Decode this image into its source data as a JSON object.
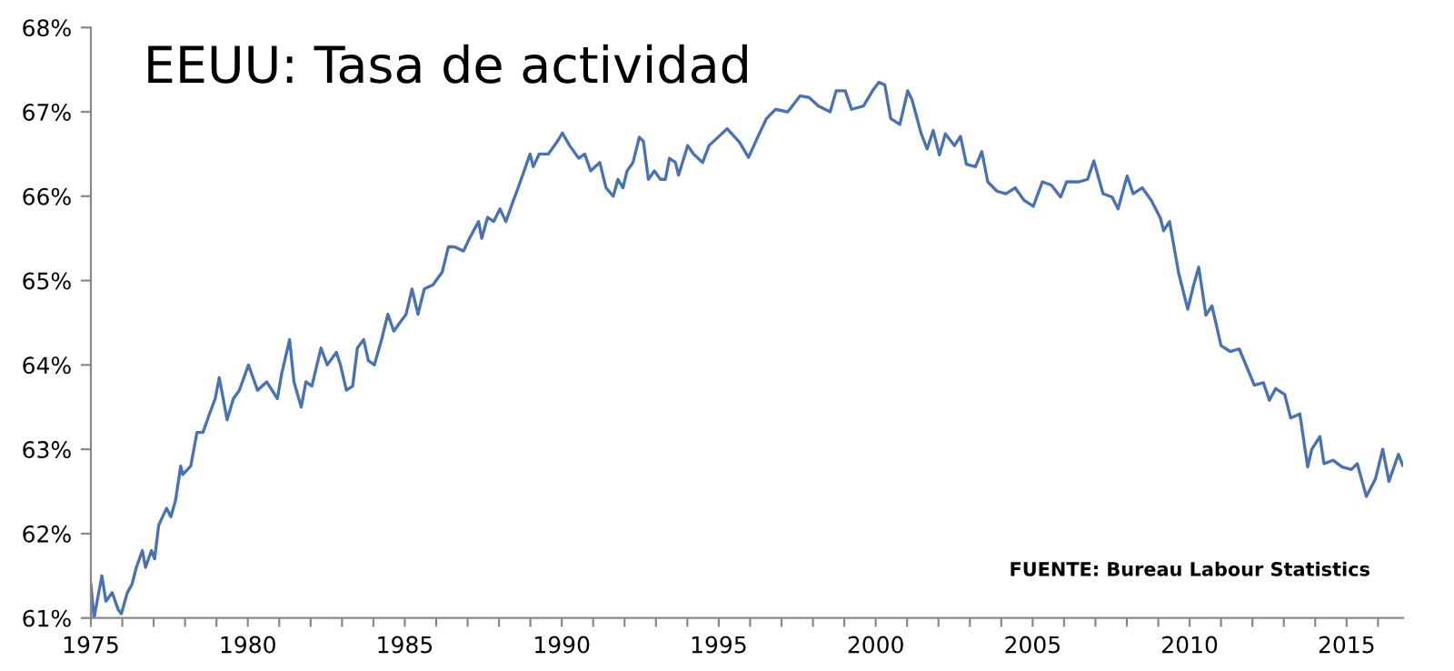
{
  "chart_data": {
    "type": "line",
    "title": "EEUU: Tasa de actividad",
    "annotations": [
      "FUENTE: Bureau Labour Statistics"
    ],
    "xlim": [
      1975,
      2016.8
    ],
    "ylim": [
      61,
      68
    ],
    "xticks": [
      1975,
      {
        "value": 1976,
        "label": null
      },
      {
        "value": 1977,
        "label": null
      },
      {
        "value": 1978,
        "label": null
      },
      {
        "value": 1979,
        "label": null
      },
      1980,
      {
        "value": 1981,
        "label": null
      },
      {
        "value": 1982,
        "label": null
      },
      {
        "value": 1983,
        "label": null
      },
      {
        "value": 1984,
        "label": null
      },
      1985,
      {
        "value": 1986,
        "label": null
      },
      {
        "value": 1987,
        "label": null
      },
      {
        "value": 1988,
        "label": null
      },
      {
        "value": 1989,
        "label": null
      },
      1990,
      {
        "value": 1991,
        "label": null
      },
      {
        "value": 1992,
        "label": null
      },
      {
        "value": 1993,
        "label": null
      },
      {
        "value": 1994,
        "label": null
      },
      1995,
      {
        "value": 1996,
        "label": null
      },
      {
        "value": 1997,
        "label": null
      },
      {
        "value": 1998,
        "label": null
      },
      {
        "value": 1999,
        "label": null
      },
      2000,
      {
        "value": 2001,
        "label": null
      },
      {
        "value": 2002,
        "label": null
      },
      {
        "value": 2003,
        "label": null
      },
      {
        "value": 2004,
        "label": null
      },
      2005,
      {
        "value": 2006,
        "label": null
      },
      {
        "value": 2007,
        "label": null
      },
      {
        "value": 2008,
        "label": null
      },
      {
        "value": 2009,
        "label": null
      },
      2010,
      {
        "value": 2011,
        "label": null
      },
      {
        "value": 2012,
        "label": null
      },
      {
        "value": 2013,
        "label": null
      },
      {
        "value": 2014,
        "label": null
      },
      2015,
      {
        "value": 2016,
        "label": null
      }
    ],
    "yticks": [
      {
        "value": 61,
        "label": "61%"
      },
      {
        "value": 62,
        "label": "62%"
      },
      {
        "value": 63,
        "label": "63%"
      },
      {
        "value": 64,
        "label": "64%"
      },
      {
        "value": 65,
        "label": "65%"
      },
      {
        "value": 66,
        "label": "66%"
      },
      {
        "value": 67,
        "label": "67%"
      },
      {
        "value": 68,
        "label": "68%"
      }
    ],
    "grid": false,
    "marker": "none",
    "line_style": "solid",
    "series": [
      {
        "color": "#4a72b0",
        "x": [
          1975.0,
          1975.1,
          1975.35,
          1975.48,
          1975.68,
          1975.87,
          1975.97,
          1976.16,
          1976.31,
          1976.45,
          1976.64,
          1976.74,
          1976.93,
          1977.03,
          1977.16,
          1977.41,
          1977.55,
          1977.7,
          1977.86,
          1977.93,
          1978.18,
          1978.38,
          1978.57,
          1978.76,
          1978.96,
          1979.09,
          1979.34,
          1979.54,
          1979.73,
          1980.02,
          1980.31,
          1980.6,
          1980.94,
          1981.08,
          1981.33,
          1981.47,
          1981.7,
          1981.85,
          1982.04,
          1982.33,
          1982.53,
          1982.82,
          1982.95,
          1983.14,
          1983.34,
          1983.49,
          1983.69,
          1983.84,
          1984.03,
          1984.26,
          1984.46,
          1984.65,
          1984.84,
          1985.04,
          1985.23,
          1985.42,
          1985.62,
          1985.9,
          1986.19,
          1986.39,
          1986.58,
          1986.87,
          1987.06,
          1987.35,
          1987.45,
          1987.64,
          1987.83,
          1988.03,
          1988.22,
          1988.41,
          1988.61,
          1988.8,
          1988.99,
          1989.09,
          1989.28,
          1989.57,
          1989.86,
          1990.02,
          1990.25,
          1990.54,
          1990.73,
          1990.92,
          1991.21,
          1991.41,
          1991.64,
          1991.79,
          1991.95,
          1992.08,
          1992.27,
          1992.47,
          1992.6,
          1992.76,
          1992.95,
          1993.14,
          1993.3,
          1993.43,
          1993.62,
          1993.72,
          1994.01,
          1994.2,
          1994.49,
          1994.69,
          1994.98,
          1995.27,
          1995.66,
          1995.95,
          1996.24,
          1996.52,
          1996.81,
          1997.2,
          1997.59,
          1997.88,
          1998.17,
          1998.55,
          1998.74,
          1999.03,
          1999.23,
          1999.61,
          1999.9,
          2000.1,
          2000.29,
          2000.48,
          2000.77,
          2001.02,
          2001.16,
          2001.45,
          2001.64,
          2001.83,
          2002.03,
          2002.22,
          2002.51,
          2002.7,
          2002.89,
          2003.18,
          2003.38,
          2003.57,
          2003.86,
          2004.15,
          2004.44,
          2004.73,
          2005.02,
          2005.31,
          2005.6,
          2005.89,
          2006.08,
          2006.46,
          2006.75,
          2006.95,
          2007.24,
          2007.53,
          2007.72,
          2008.01,
          2008.2,
          2008.49,
          2008.78,
          2009.07,
          2009.17,
          2009.36,
          2009.65,
          2009.94,
          2010.13,
          2010.29,
          2010.52,
          2010.71,
          2011.0,
          2011.29,
          2011.58,
          2011.77,
          2012.06,
          2012.35,
          2012.54,
          2012.74,
          2013.03,
          2013.22,
          2013.51,
          2013.76,
          2013.89,
          2014.15,
          2014.28,
          2014.57,
          2014.86,
          2015.15,
          2015.34,
          2015.63,
          2015.92,
          2016.15,
          2016.35,
          2016.65,
          2016.79
        ],
        "values": [
          61.4,
          61.0,
          61.5,
          61.2,
          61.3,
          61.1,
          61.05,
          61.3,
          61.4,
          61.6,
          61.8,
          61.6,
          61.8,
          61.7,
          62.1,
          62.3,
          62.2,
          62.4,
          62.8,
          62.7,
          62.8,
          63.2,
          63.2,
          63.4,
          63.6,
          63.85,
          63.35,
          63.6,
          63.7,
          64.0,
          63.7,
          63.8,
          63.6,
          63.9,
          64.3,
          63.8,
          63.5,
          63.8,
          63.75,
          64.2,
          64.0,
          64.15,
          64.0,
          63.7,
          63.75,
          64.2,
          64.3,
          64.05,
          64.0,
          64.3,
          64.6,
          64.4,
          64.5,
          64.6,
          64.9,
          64.6,
          64.9,
          64.95,
          65.1,
          65.4,
          65.4,
          65.35,
          65.5,
          65.7,
          65.5,
          65.75,
          65.7,
          65.85,
          65.7,
          65.9,
          66.1,
          66.3,
          66.5,
          66.35,
          66.5,
          66.5,
          66.65,
          66.75,
          66.6,
          66.45,
          66.5,
          66.3,
          66.4,
          66.1,
          66.0,
          66.2,
          66.1,
          66.3,
          66.4,
          66.7,
          66.65,
          66.2,
          66.3,
          66.2,
          66.2,
          66.45,
          66.4,
          66.25,
          66.6,
          66.5,
          66.4,
          66.6,
          66.7,
          66.8,
          66.64,
          66.46,
          66.7,
          66.92,
          67.03,
          67.0,
          67.19,
          67.17,
          67.07,
          67.0,
          67.25,
          67.25,
          67.03,
          67.07,
          67.25,
          67.35,
          67.32,
          66.92,
          66.85,
          67.25,
          67.14,
          66.74,
          66.56,
          66.78,
          66.49,
          66.74,
          66.6,
          66.71,
          66.38,
          66.35,
          66.53,
          66.17,
          66.06,
          66.03,
          66.1,
          65.95,
          65.88,
          66.17,
          66.13,
          65.99,
          66.17,
          66.17,
          66.2,
          66.42,
          66.03,
          65.99,
          65.85,
          66.24,
          66.03,
          66.1,
          65.95,
          65.74,
          65.59,
          65.7,
          65.09,
          64.66,
          64.95,
          65.16,
          64.59,
          64.7,
          64.23,
          64.16,
          64.19,
          64.02,
          63.76,
          63.79,
          63.58,
          63.72,
          63.65,
          63.37,
          63.42,
          62.79,
          63.0,
          63.15,
          62.83,
          62.87,
          62.79,
          62.76,
          62.83,
          62.44,
          62.65,
          63.0,
          62.62,
          62.94,
          62.81
        ]
      }
    ]
  }
}
